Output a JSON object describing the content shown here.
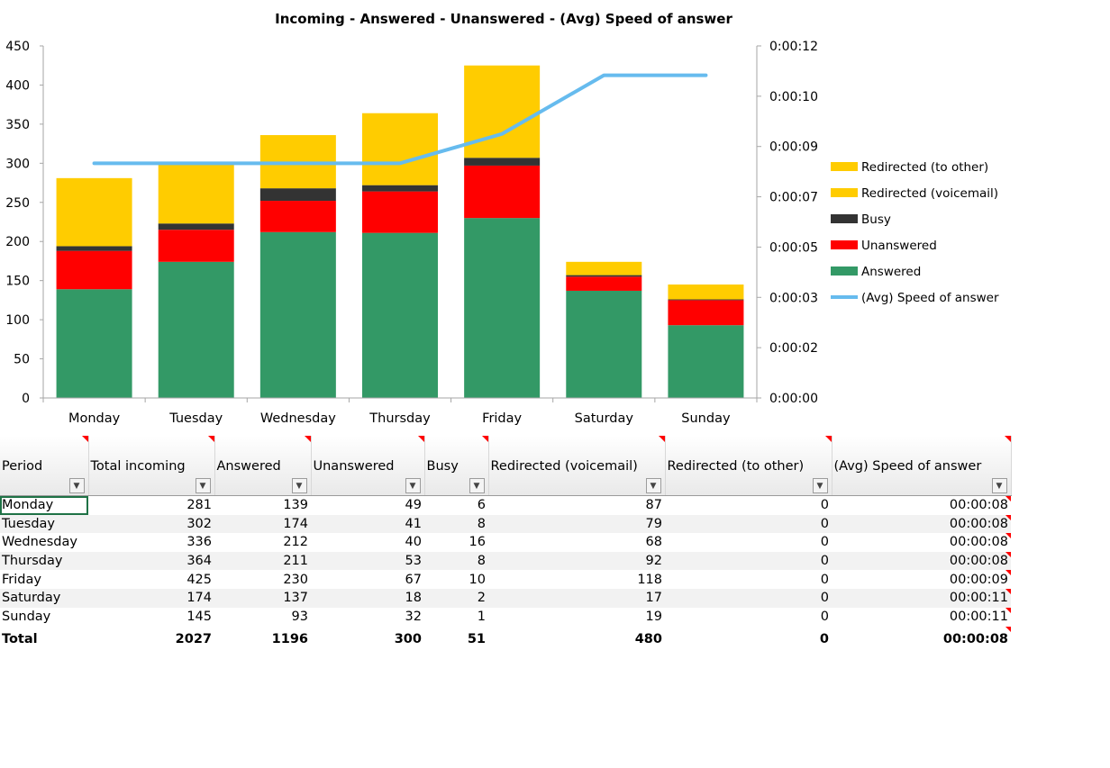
{
  "chart_data": {
    "type": "bar",
    "title": "Incoming - Answered - Unanswered - (Avg) Speed of answer",
    "categories": [
      "Monday",
      "Tuesday",
      "Wednesday",
      "Thursday",
      "Friday",
      "Saturday",
      "Sunday"
    ],
    "stacked": true,
    "y_left": {
      "min": 0,
      "max": 450,
      "step": 50,
      "tick_labels": [
        "0",
        "50",
        "100",
        "150",
        "200",
        "250",
        "300",
        "350",
        "400",
        "450"
      ]
    },
    "y_right": {
      "min_seconds": 0,
      "max_seconds": 12,
      "tick_labels": [
        "0:00:00",
        "0:00:02",
        "0:00:03",
        "0:00:05",
        "0:00:07",
        "0:00:09",
        "0:00:10",
        "0:00:12"
      ]
    },
    "series": [
      {
        "name": "Answered",
        "kind": "bar",
        "color": "#339966",
        "values": [
          139,
          174,
          212,
          211,
          230,
          137,
          93
        ]
      },
      {
        "name": "Unanswered",
        "kind": "bar",
        "color": "#ff0000",
        "values": [
          49,
          41,
          40,
          53,
          67,
          18,
          32
        ]
      },
      {
        "name": "Busy",
        "kind": "bar",
        "color": "#333333",
        "values": [
          6,
          8,
          16,
          8,
          10,
          2,
          1
        ]
      },
      {
        "name": "Redirected (voicemail)",
        "kind": "bar",
        "color": "#ffcc00",
        "values": [
          87,
          79,
          68,
          92,
          118,
          17,
          19
        ]
      },
      {
        "name": "Redirected (to other)",
        "kind": "bar",
        "color": "#ffcc00",
        "values": [
          0,
          0,
          0,
          0,
          0,
          0,
          0
        ]
      },
      {
        "name": "(Avg) Speed of answer",
        "kind": "line",
        "axis": "right",
        "color": "#66bbee",
        "values_seconds": [
          8,
          8,
          8,
          8,
          9,
          11,
          11
        ]
      }
    ],
    "legend_order": [
      "Redirected (to other)",
      "Redirected (voicemail)",
      "Busy",
      "Unanswered",
      "Answered",
      "(Avg) Speed of answer"
    ],
    "legend_position": "right",
    "grid": false
  },
  "table": {
    "headers": [
      "Period",
      "Total incoming",
      "Answered",
      "Unanswered",
      "Busy",
      "Redirected (voicemail)",
      "Redirected (to other)",
      "(Avg) Speed of answer"
    ],
    "filter_glyph": "▼",
    "rows": [
      [
        "Monday",
        "281",
        "139",
        "49",
        "6",
        "87",
        "0",
        "00:00:08"
      ],
      [
        "Tuesday",
        "302",
        "174",
        "41",
        "8",
        "79",
        "0",
        "00:00:08"
      ],
      [
        "Wednesday",
        "336",
        "212",
        "40",
        "16",
        "68",
        "0",
        "00:00:08"
      ],
      [
        "Thursday",
        "364",
        "211",
        "53",
        "8",
        "92",
        "0",
        "00:00:08"
      ],
      [
        "Friday",
        "425",
        "230",
        "67",
        "10",
        "118",
        "0",
        "00:00:09"
      ],
      [
        "Saturday",
        "174",
        "137",
        "18",
        "2",
        "17",
        "0",
        "00:00:11"
      ],
      [
        "Sunday",
        "145",
        "93",
        "32",
        "1",
        "19",
        "0",
        "00:00:11"
      ]
    ],
    "total": [
      "Total",
      "2027",
      "1196",
      "300",
      "51",
      "480",
      "0",
      "00:00:08"
    ]
  }
}
